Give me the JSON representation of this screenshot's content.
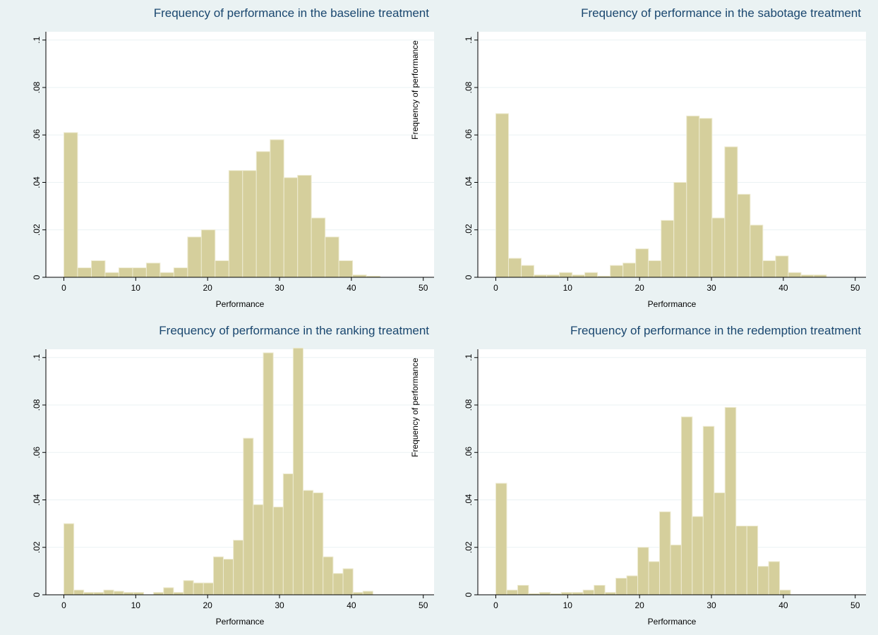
{
  "chart_data": [
    {
      "type": "histogram",
      "title": "Frequency of performance in the baseline treatment",
      "xlabel": "Performance",
      "bins": [
        0,
        1.91,
        3.83,
        5.74,
        7.65,
        9.57,
        11.48,
        13.39,
        15.3,
        17.22,
        19.13,
        21.04,
        22.96,
        24.87,
        26.78,
        28.7,
        30.61,
        32.52,
        34.43,
        36.35,
        38.26,
        40.17,
        42.09,
        44
      ],
      "values": [
        0.061,
        0.004,
        0.007,
        0.002,
        0.004,
        0.004,
        0.006,
        0.002,
        0.004,
        0.017,
        0.02,
        0.007,
        0.045,
        0.045,
        0.053,
        0.058,
        0.042,
        0.043,
        0.025,
        0.017,
        0.007,
        0.001,
        0.0005
      ],
      "color": "#d5cf9c",
      "xlim": [
        -2.5,
        51.5
      ],
      "xticks": [
        0,
        10,
        20,
        30,
        40,
        50
      ],
      "ylim": [
        0,
        0.1035
      ],
      "yticks": [
        0,
        {
          "value": 0.02,
          "label": ".02"
        },
        {
          "value": 0.04,
          "label": ".04"
        },
        {
          "value": 0.06,
          "label": ".06"
        },
        {
          "value": 0.08,
          "label": ".08"
        },
        {
          "value": 0.1,
          "label": ".1"
        }
      ],
      "grid": true
    },
    {
      "type": "histogram",
      "title": "Frequency of performance in the sabotage treatment",
      "xlabel": "Performance",
      "ylabel": "Frequency of performance",
      "bins": [
        0,
        1.77,
        3.54,
        5.31,
        7.08,
        8.85,
        10.62,
        12.38,
        14.15,
        15.92,
        17.69,
        19.46,
        21.23,
        23,
        24.77,
        26.54,
        28.31,
        30.08,
        31.85,
        33.62,
        35.38,
        37.15,
        38.92,
        40.69,
        42.46,
        44.23,
        46
      ],
      "values": [
        0.069,
        0.008,
        0.005,
        0.001,
        0.001,
        0.002,
        0.001,
        0.002,
        0.0005,
        0.005,
        0.006,
        0.012,
        0.007,
        0.024,
        0.04,
        0.068,
        0.067,
        0.025,
        0.055,
        0.035,
        0.022,
        0.007,
        0.009,
        0.002,
        0.001,
        0.001
      ],
      "color": "#d5cf9c",
      "xlim": [
        -2.5,
        51.5
      ],
      "xticks": [
        0,
        10,
        20,
        30,
        40,
        50
      ],
      "ylim": [
        0,
        0.1035
      ],
      "yticks": [
        0,
        {
          "value": 0.02,
          "label": ".02"
        },
        {
          "value": 0.04,
          "label": ".04"
        },
        {
          "value": 0.06,
          "label": ".06"
        },
        {
          "value": 0.08,
          "label": ".08"
        },
        {
          "value": 0.1,
          "label": ".1"
        }
      ],
      "grid": true
    },
    {
      "type": "histogram",
      "title": "Frequency of performance in the ranking treatment",
      "xlabel": "Performance",
      "bins": [
        0,
        1.39,
        2.77,
        4.16,
        5.55,
        6.94,
        8.32,
        9.71,
        11.1,
        12.48,
        13.87,
        15.26,
        16.65,
        18.03,
        19.42,
        20.81,
        22.19,
        23.58,
        24.97,
        26.35,
        27.74,
        29.13,
        30.52,
        31.9,
        33.29,
        34.68,
        36.06,
        37.45,
        38.84,
        40.23,
        41.61,
        43
      ],
      "values": [
        0.03,
        0.002,
        0.001,
        0.001,
        0.002,
        0.0015,
        0.001,
        0.001,
        0,
        0.001,
        0.003,
        0.001,
        0.006,
        0.005,
        0.005,
        0.016,
        0.015,
        0.023,
        0.066,
        0.038,
        0.102,
        0.037,
        0.051,
        0.104,
        0.044,
        0.043,
        0.016,
        0.009,
        0.011,
        0.001,
        0.0015
      ],
      "color": "#d5cf9c",
      "xlim": [
        -2.5,
        51.5
      ],
      "xticks": [
        0,
        10,
        20,
        30,
        40,
        50
      ],
      "ylim": [
        0,
        0.1035
      ],
      "yticks": [
        0,
        {
          "value": 0.02,
          "label": ".02"
        },
        {
          "value": 0.04,
          "label": ".04"
        },
        {
          "value": 0.06,
          "label": ".06"
        },
        {
          "value": 0.08,
          "label": ".08"
        },
        {
          "value": 0.1,
          "label": ".1"
        }
      ],
      "grid": true
    },
    {
      "type": "histogram",
      "title": "Frequency of performance in the redemption treatment",
      "xlabel": "Performance",
      "ylabel": "Frequency of performance",
      "bins": [
        0,
        1.52,
        3.04,
        4.56,
        6.07,
        7.59,
        9.11,
        10.63,
        12.15,
        13.67,
        15.19,
        16.7,
        18.22,
        19.74,
        21.26,
        22.78,
        24.3,
        25.81,
        27.33,
        28.85,
        30.37,
        31.89,
        33.41,
        34.93,
        36.44,
        37.96,
        39.48,
        41
      ],
      "values": [
        0.047,
        0.002,
        0.004,
        0.0005,
        0.001,
        0.0005,
        0.001,
        0.001,
        0.002,
        0.004,
        0.001,
        0.007,
        0.008,
        0.02,
        0.014,
        0.035,
        0.021,
        0.075,
        0.033,
        0.071,
        0.043,
        0.079,
        0.029,
        0.029,
        0.012,
        0.014,
        0.002
      ],
      "color": "#d5cf9c",
      "xlim": [
        -2.5,
        51.5
      ],
      "xticks": [
        0,
        10,
        20,
        30,
        40,
        50
      ],
      "ylim": [
        0,
        0.1035
      ],
      "yticks": [
        0,
        {
          "value": 0.02,
          "label": ".02"
        },
        {
          "value": 0.04,
          "label": ".04"
        },
        {
          "value": 0.06,
          "label": ".06"
        },
        {
          "value": 0.08,
          "label": ".08"
        },
        {
          "value": 0.1,
          "label": ".1"
        }
      ],
      "grid": true
    }
  ]
}
